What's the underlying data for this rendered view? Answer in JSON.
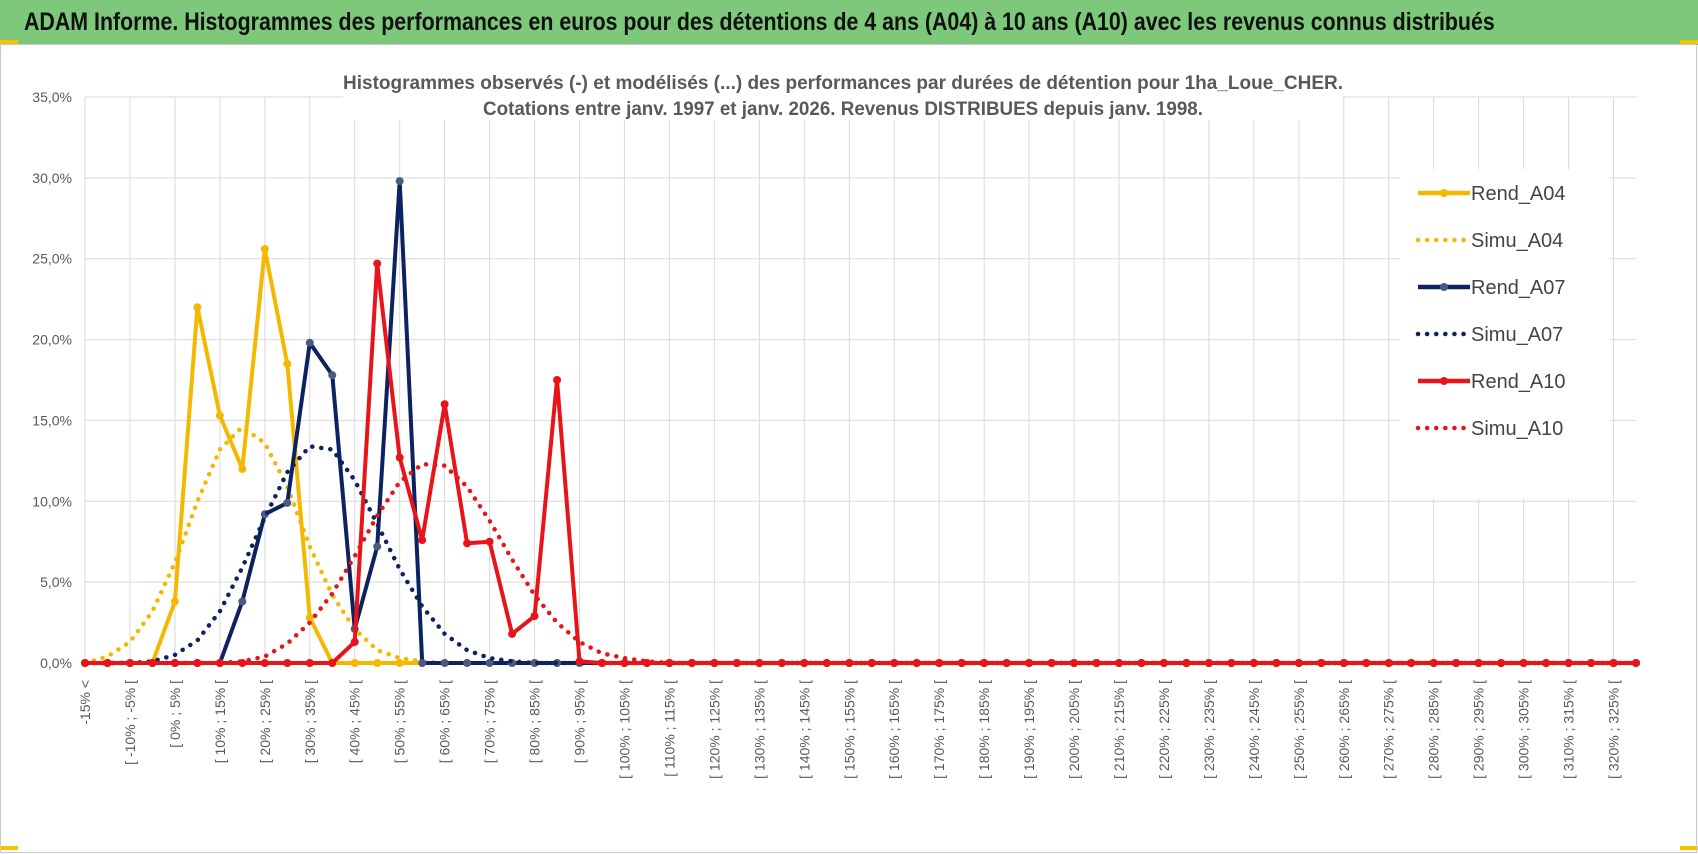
{
  "header": {
    "title": "ADAM Informe. Histogrammes des performances en euros pour des détentions de 4 ans (A04) à 10 ans (A10) avec les revenus connus distribués"
  },
  "chart_data": {
    "type": "line",
    "title_line1": "Histogrammes observés (-) et modélisés (...) des performances par durées de détention pour 1ha_Loue_CHER.",
    "title_line2": "Cotations entre janv. 1997 et janv. 2026. Revenus DISTRIBUES depuis janv. 1998.",
    "ylim": [
      0,
      35
    ],
    "y_ticks": [
      "0,0%",
      "5,0%",
      "10,0%",
      "15,0%",
      "20,0%",
      "25,0%",
      "30,0%",
      "35,0%"
    ],
    "grid": true,
    "legend_position": "right",
    "x_tick_labels": [
      "-15% <",
      "[ -10% ; -5% [",
      "[ 0% ; 5% [",
      "[ 10% ; 15% [",
      "[ 20% ; 25% [",
      "[ 30% ; 35% [",
      "[ 40% ; 45% [",
      "[ 50% ; 55% [",
      "[ 60% ; 65% [",
      "[ 70% ; 75% [",
      "[ 80% ; 85% [",
      "[ 90% ; 95% [",
      "[ 100% ; 105% [",
      "[ 110% ; 115% [",
      "[ 120% ; 125% [",
      "[ 130% ; 135% [",
      "[ 140% ; 145% [",
      "[ 150% ; 155% [",
      "[ 160% ; 165% [",
      "[ 170% ; 175% [",
      "[ 180% ; 185% [",
      "[ 190% ; 195% [",
      "[ 200% ; 205% [",
      "[ 210% ; 215% [",
      "[ 220% ; 225% [",
      "[ 230% ; 235% [",
      "[ 240% ; 245% [",
      "[ 250% ; 255% [",
      "[ 260% ; 265% [",
      "[ 270% ; 275% [",
      "[ 280% ; 285% [",
      "[ 290% ; 295% [",
      "[ 300% ; 305% [",
      "[ 310% ; 315% [",
      "[ 320% ; 325% ["
    ],
    "series": [
      {
        "name": "Rend_A04",
        "color": "#f5b800",
        "style": "solid",
        "markers": true,
        "values": [
          0,
          0,
          0,
          0,
          3.8,
          22.0,
          15.3,
          12.0,
          25.6,
          18.5,
          2.8,
          0,
          0,
          0,
          0,
          0,
          0,
          0,
          0,
          0,
          0,
          0,
          0,
          0,
          0,
          0,
          0,
          0,
          0,
          0,
          0,
          0,
          0,
          0,
          0,
          0,
          0,
          0,
          0,
          0,
          0,
          0,
          0,
          0,
          0,
          0,
          0,
          0,
          0,
          0,
          0,
          0,
          0,
          0,
          0,
          0,
          0,
          0,
          0,
          0,
          0,
          0,
          0,
          0,
          0,
          0,
          0,
          0,
          0,
          0
        ]
      },
      {
        "name": "Simu_A04",
        "color": "#f5b800",
        "style": "dotted",
        "markers": false,
        "values": [
          0,
          0.4,
          1.3,
          3.2,
          6.2,
          10.0,
          13.2,
          14.6,
          13.6,
          10.9,
          7.2,
          4.2,
          2.1,
          0.8,
          0.3,
          0.1,
          0,
          0,
          0,
          0,
          0,
          0,
          0,
          0,
          0,
          0,
          0,
          0,
          0,
          0,
          0,
          0,
          0,
          0,
          0,
          0,
          0,
          0,
          0,
          0,
          0,
          0,
          0,
          0,
          0,
          0,
          0,
          0,
          0,
          0,
          0,
          0,
          0,
          0,
          0,
          0,
          0,
          0,
          0,
          0,
          0,
          0,
          0,
          0,
          0,
          0,
          0,
          0,
          0,
          0
        ]
      },
      {
        "name": "Rend_A07",
        "color": "#0d2260",
        "style": "solid",
        "markers": true,
        "values": [
          0,
          0,
          0,
          0,
          0,
          0,
          0,
          3.8,
          9.2,
          9.9,
          19.8,
          17.8,
          2.1,
          7.2,
          29.8,
          0,
          0,
          0,
          0,
          0,
          0,
          0,
          0,
          0,
          0,
          0,
          0,
          0,
          0,
          0,
          0,
          0,
          0,
          0,
          0,
          0,
          0,
          0,
          0,
          0,
          0,
          0,
          0,
          0,
          0,
          0,
          0,
          0,
          0,
          0,
          0,
          0,
          0,
          0,
          0,
          0,
          0,
          0,
          0,
          0,
          0,
          0,
          0,
          0,
          0,
          0,
          0,
          0,
          0,
          0
        ]
      },
      {
        "name": "Simu_A07",
        "color": "#0d2260",
        "style": "dotted",
        "markers": false,
        "values": [
          0,
          0,
          0,
          0.1,
          0.5,
          1.4,
          3.2,
          5.9,
          9.0,
          11.8,
          13.4,
          13.2,
          11.3,
          8.6,
          5.8,
          3.5,
          1.8,
          0.8,
          0.3,
          0.1,
          0,
          0,
          0,
          0,
          0,
          0,
          0,
          0,
          0,
          0,
          0,
          0,
          0,
          0,
          0,
          0,
          0,
          0,
          0,
          0,
          0,
          0,
          0,
          0,
          0,
          0,
          0,
          0,
          0,
          0,
          0,
          0,
          0,
          0,
          0,
          0,
          0,
          0,
          0,
          0,
          0,
          0,
          0,
          0,
          0,
          0,
          0,
          0,
          0,
          0
        ]
      },
      {
        "name": "Rend_A10",
        "color": "#e8141a",
        "style": "solid",
        "markers": true,
        "values": [
          0,
          0,
          0,
          0,
          0,
          0,
          0,
          0,
          0,
          0,
          0,
          0,
          1.3,
          24.7,
          12.7,
          7.6,
          16.0,
          7.4,
          7.5,
          1.8,
          2.9,
          17.5,
          0.1,
          0,
          0,
          0,
          0,
          0,
          0,
          0,
          0,
          0,
          0,
          0,
          0,
          0,
          0,
          0,
          0,
          0,
          0,
          0,
          0,
          0,
          0,
          0,
          0,
          0,
          0,
          0,
          0,
          0,
          0,
          0,
          0,
          0,
          0,
          0,
          0,
          0,
          0,
          0,
          0,
          0,
          0,
          0,
          0,
          0,
          0,
          0
        ]
      },
      {
        "name": "Simu_A10",
        "color": "#e8141a",
        "style": "dotted",
        "markers": false,
        "values": [
          0,
          0,
          0,
          0,
          0,
          0,
          0,
          0.1,
          0.4,
          1.2,
          2.5,
          4.3,
          6.6,
          9.1,
          11.2,
          12.3,
          12.2,
          10.9,
          8.8,
          6.4,
          4.2,
          2.5,
          1.3,
          0.6,
          0.3,
          0.1,
          0,
          0,
          0,
          0,
          0,
          0,
          0,
          0,
          0,
          0,
          0,
          0,
          0,
          0,
          0,
          0,
          0,
          0,
          0,
          0,
          0,
          0,
          0,
          0,
          0,
          0,
          0,
          0,
          0,
          0,
          0,
          0,
          0,
          0,
          0,
          0,
          0,
          0,
          0,
          0,
          0,
          0,
          0,
          0
        ]
      }
    ]
  }
}
